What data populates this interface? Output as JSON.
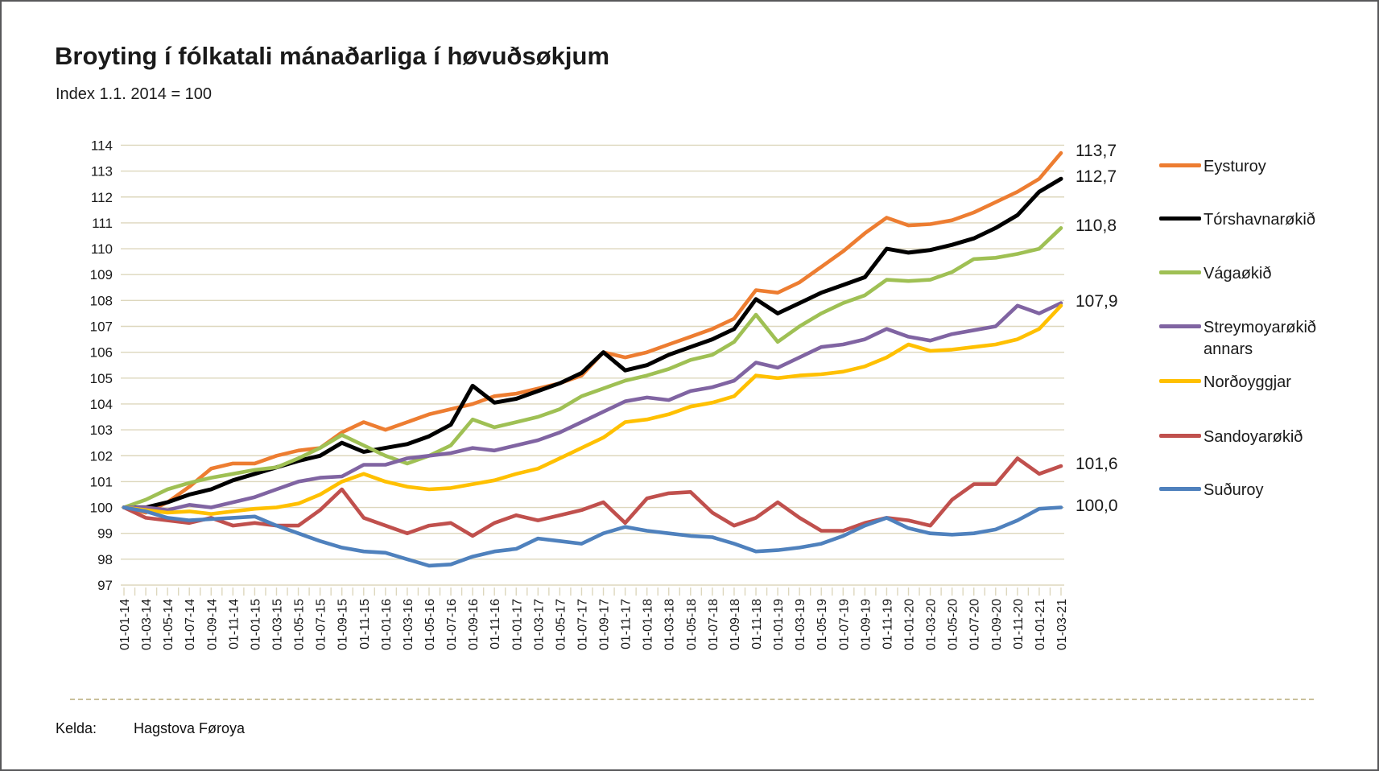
{
  "header": {
    "title": "Broyting í fólkatali mánaðarliga í høvuðsøkjum",
    "subtitle": "Index 1.1. 2014 = 100"
  },
  "footer": {
    "kelda_label": "Kelda:",
    "source": "Hagstova Føroya"
  },
  "colors": {
    "gridline": "#ddd7bd",
    "tick": "#ddd7bd",
    "text": "#1a1a1a"
  },
  "chart_data": {
    "type": "line",
    "title": "Broyting í fólkatali mánaðarliga í høvuðsøkjum",
    "subtitle": "Index 1.1. 2014 = 100",
    "ylim": [
      97,
      114
    ],
    "ytick_step": 1,
    "grid": "horizontal",
    "legend_position": "right",
    "x_labels": [
      "01-01-14",
      "01-03-14",
      "01-05-14",
      "01-07-14",
      "01-09-14",
      "01-11-14",
      "01-01-15",
      "01-03-15",
      "01-05-15",
      "01-07-15",
      "01-09-15",
      "01-11-15",
      "01-01-16",
      "01-03-16",
      "01-05-16",
      "01-07-16",
      "01-09-16",
      "01-11-16",
      "01-01-17",
      "01-03-17",
      "01-05-17",
      "01-07-17",
      "01-09-17",
      "01-11-17",
      "01-01-18",
      "01-03-18",
      "01-05-18",
      "01-07-18",
      "01-09-18",
      "01-11-18",
      "01-01-19",
      "01-03-19",
      "01-05-19",
      "01-07-19",
      "01-09-19",
      "01-11-19",
      "01-01-20",
      "01-03-20",
      "01-05-20",
      "01-07-20",
      "01-09-20",
      "01-11-20",
      "01-01-21",
      "01-03-21"
    ],
    "series": [
      {
        "name": "Eysturoy",
        "color": "#ED7D31",
        "end_label": "113,7",
        "values": [
          100,
          99.8,
          100.2,
          100.8,
          101.5,
          101.7,
          101.7,
          102.0,
          102.2,
          102.3,
          102.9,
          103.3,
          103.0,
          103.3,
          103.6,
          103.8,
          104.0,
          104.3,
          104.4,
          104.6,
          104.8,
          105.1,
          106.0,
          105.8,
          106.0,
          106.3,
          106.6,
          106.9,
          107.3,
          108.4,
          108.3,
          108.7,
          109.3,
          109.9,
          110.6,
          111.2,
          110.9,
          110.95,
          111.1,
          111.4,
          111.8,
          112.2,
          112.7,
          113.7
        ]
      },
      {
        "name": "Tórshavnarøkið",
        "color": "#000000",
        "end_label": "112,7",
        "values": [
          100,
          100.0,
          100.2,
          100.5,
          100.7,
          101.05,
          101.3,
          101.55,
          101.8,
          102.0,
          102.5,
          102.15,
          102.3,
          102.45,
          102.75,
          103.2,
          104.7,
          104.05,
          104.2,
          104.5,
          104.8,
          105.2,
          106.0,
          105.3,
          105.5,
          105.9,
          106.2,
          106.5,
          106.9,
          108.05,
          107.5,
          107.9,
          108.3,
          108.6,
          108.9,
          110.0,
          109.85,
          109.95,
          110.15,
          110.4,
          110.8,
          111.3,
          112.2,
          112.7
        ]
      },
      {
        "name": "Vágaøkið",
        "color": "#9FC054",
        "end_label": "110,8",
        "values": [
          100,
          100.3,
          100.7,
          100.95,
          101.15,
          101.3,
          101.45,
          101.55,
          101.9,
          102.3,
          102.8,
          102.4,
          102.0,
          101.7,
          102.0,
          102.4,
          103.4,
          103.1,
          103.3,
          103.5,
          103.8,
          104.3,
          104.6,
          104.9,
          105.1,
          105.35,
          105.7,
          105.9,
          106.4,
          107.45,
          106.4,
          107.0,
          107.5,
          107.9,
          108.2,
          108.8,
          108.75,
          108.8,
          109.1,
          109.6,
          109.65,
          109.8,
          110.0,
          110.8
        ]
      },
      {
        "name": "Streymoyarøkið annars",
        "color": "#8064A2",
        "end_label": "107,9",
        "values": [
          100,
          100.0,
          99.9,
          100.1,
          100.0,
          100.2,
          100.4,
          100.7,
          101.0,
          101.15,
          101.2,
          101.65,
          101.65,
          101.9,
          102.0,
          102.1,
          102.3,
          102.2,
          102.4,
          102.6,
          102.9,
          103.3,
          103.7,
          104.1,
          104.25,
          104.15,
          104.5,
          104.65,
          104.9,
          105.6,
          105.4,
          105.8,
          106.2,
          106.3,
          106.5,
          106.9,
          106.6,
          106.45,
          106.7,
          106.85,
          107.0,
          107.8,
          107.5,
          107.9
        ]
      },
      {
        "name": "Norðoyggjar",
        "color": "#FFC000",
        "end_label": "",
        "values": [
          100,
          99.9,
          99.8,
          99.85,
          99.75,
          99.85,
          99.95,
          100.0,
          100.15,
          100.5,
          101.0,
          101.3,
          101.0,
          100.8,
          100.7,
          100.75,
          100.9,
          101.05,
          101.3,
          101.5,
          101.9,
          102.3,
          102.7,
          103.3,
          103.4,
          103.6,
          103.9,
          104.05,
          104.3,
          105.1,
          105.0,
          105.1,
          105.15,
          105.25,
          105.45,
          105.8,
          106.3,
          106.05,
          106.1,
          106.2,
          106.3,
          106.5,
          106.9,
          107.8
        ]
      },
      {
        "name": "Sandoyarøkið",
        "color": "#C0504D",
        "end_label": "101,6",
        "values": [
          100,
          99.6,
          99.5,
          99.4,
          99.6,
          99.3,
          99.4,
          99.3,
          99.3,
          99.9,
          100.7,
          99.6,
          99.3,
          99.0,
          99.3,
          99.4,
          98.9,
          99.4,
          99.7,
          99.5,
          99.7,
          99.9,
          100.2,
          99.4,
          100.35,
          100.55,
          100.6,
          99.8,
          99.3,
          99.6,
          100.2,
          99.6,
          99.1,
          99.1,
          99.4,
          99.6,
          99.5,
          99.3,
          100.3,
          100.9,
          100.9,
          101.9,
          101.3,
          101.6
        ]
      },
      {
        "name": "Suðuroy",
        "color": "#4F81BD",
        "end_label": "100,0",
        "values": [
          100,
          99.85,
          99.6,
          99.5,
          99.55,
          99.6,
          99.65,
          99.3,
          99.0,
          98.7,
          98.45,
          98.3,
          98.25,
          98.0,
          97.75,
          97.8,
          98.1,
          98.3,
          98.4,
          98.8,
          98.7,
          98.6,
          99.0,
          99.25,
          99.1,
          99.0,
          98.9,
          98.85,
          98.6,
          98.3,
          98.35,
          98.45,
          98.6,
          98.9,
          99.3,
          99.6,
          99.2,
          99.0,
          98.95,
          99.0,
          99.15,
          99.5,
          99.95,
          100.0
        ]
      }
    ]
  }
}
